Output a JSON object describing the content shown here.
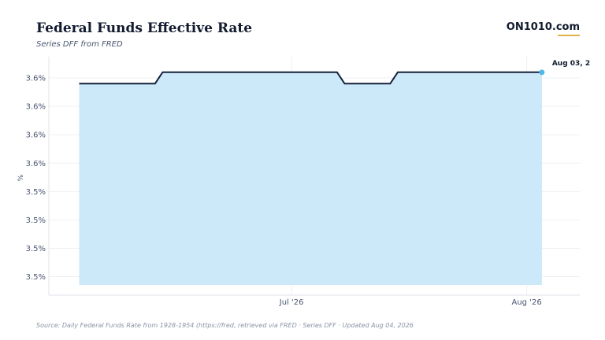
{
  "header": {
    "title": "Federal Funds Effective Rate",
    "subtitle": "Series DFF from FRED",
    "brand": "ON1010.com"
  },
  "footer": {
    "source": "Source:  Daily Federal Funds Rate from 1928-1954 (https://fred, retrieved via FRED · Series DFF · Updated Aug 04, 2026"
  },
  "colors": {
    "line": "#16213a",
    "area": "#cbe9f9",
    "marker": "#4fb8e6",
    "grid": "#edf0f4",
    "accent": "#e0b24a"
  },
  "chart_data": {
    "type": "area",
    "ylabel": "%",
    "y_ticks": [
      {
        "value": 3.58,
        "label": "3.6%"
      },
      {
        "value": 3.56,
        "label": "3.6%"
      },
      {
        "value": 3.54,
        "label": "3.6%"
      },
      {
        "value": 3.52,
        "label": "3.6%"
      },
      {
        "value": 3.5,
        "label": "3.5%"
      },
      {
        "value": 3.48,
        "label": "3.5%"
      },
      {
        "value": 3.46,
        "label": "3.5%"
      },
      {
        "value": 3.44,
        "label": "3.5%"
      }
    ],
    "ylim": [
      3.427,
      3.595
    ],
    "xlim": [
      "2026-05-30",
      "2026-08-08"
    ],
    "x_ticks": [
      {
        "value": "2026-07-01",
        "label": "Jul '26"
      },
      {
        "value": "2026-08-01",
        "label": "Aug '26"
      }
    ],
    "grid": true,
    "series": [
      {
        "values": [
          {
            "x": "2026-06-03",
            "y": 3.576
          },
          {
            "x": "2026-06-13",
            "y": 3.576
          },
          {
            "x": "2026-06-14",
            "y": 3.584
          },
          {
            "x": "2026-07-07",
            "y": 3.584
          },
          {
            "x": "2026-07-08",
            "y": 3.576
          },
          {
            "x": "2026-07-14",
            "y": 3.576
          },
          {
            "x": "2026-07-15",
            "y": 3.584
          },
          {
            "x": "2026-08-03",
            "y": 3.584
          }
        ]
      }
    ],
    "end_label": "Aug 03, 2"
  }
}
